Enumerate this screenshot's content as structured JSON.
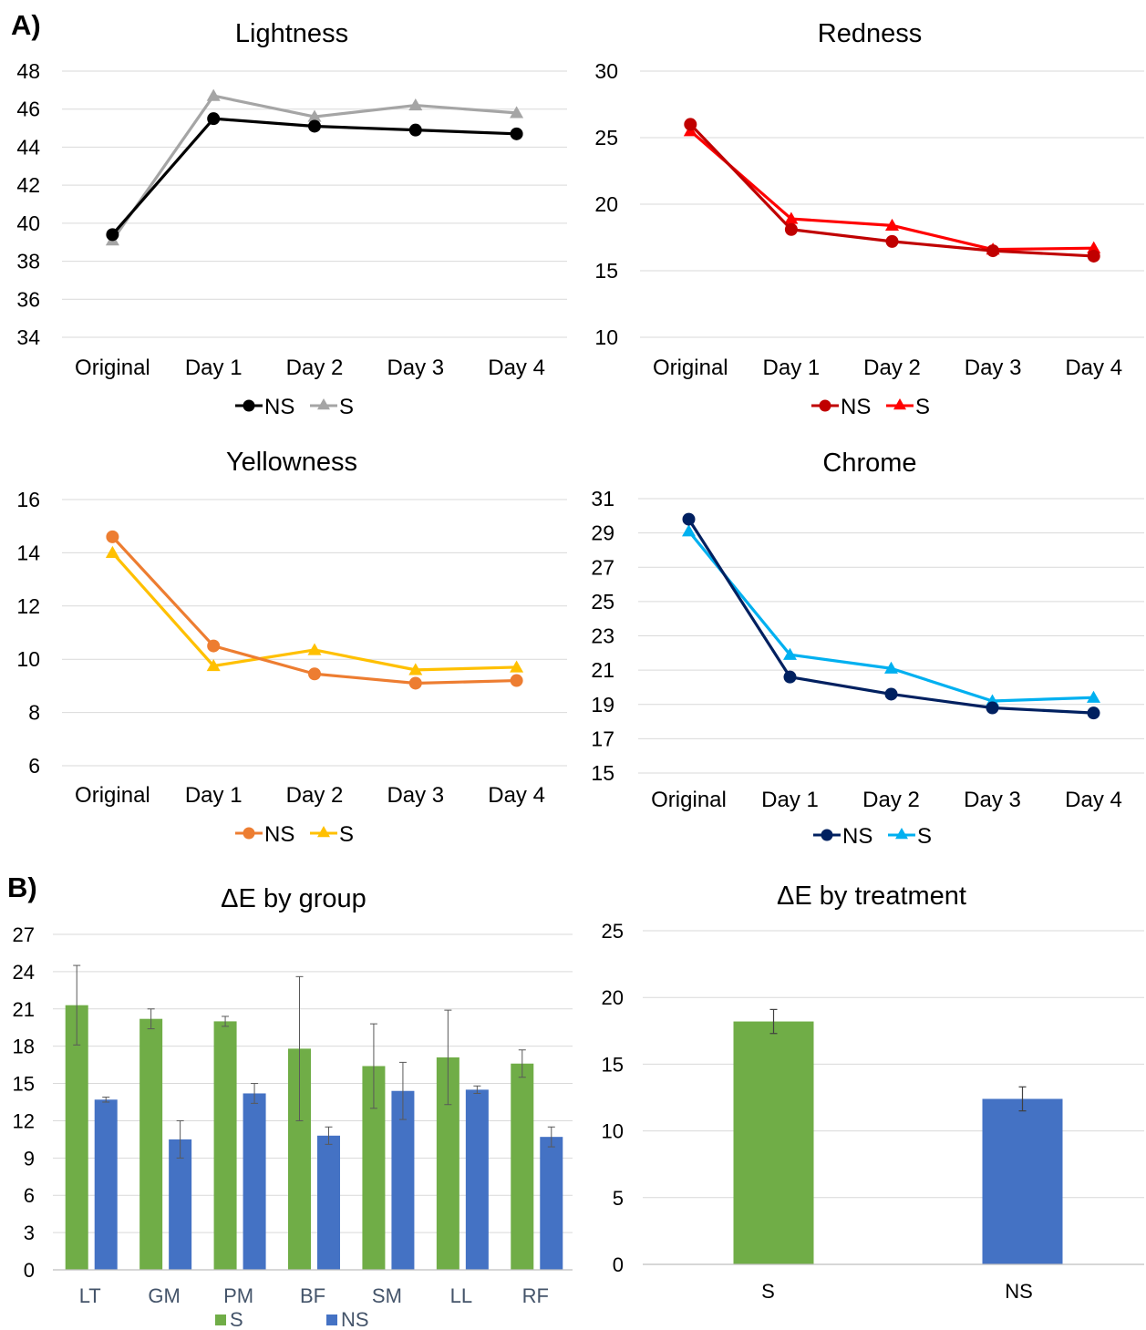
{
  "panel_labels": {
    "a": "A)",
    "b": "B)"
  },
  "chart_data": [
    {
      "id": "lightness",
      "type": "line",
      "title": "Lightness",
      "categories": [
        "Original",
        "Day 1",
        "Day 2",
        "Day 3",
        "Day 4"
      ],
      "ylim": [
        34,
        48
      ],
      "yticks": [
        "34",
        "36",
        "38",
        "40",
        "42",
        "44",
        "46",
        "48"
      ],
      "grid": true,
      "legend": "bottom",
      "series": [
        {
          "name": "NS",
          "marker": "circle",
          "color": "#000000",
          "values": [
            39.4,
            45.5,
            45.1,
            44.9,
            44.7
          ]
        },
        {
          "name": "S",
          "marker": "triangle",
          "color": "#a5a5a5",
          "values": [
            39.1,
            46.7,
            45.6,
            46.2,
            45.8
          ]
        }
      ]
    },
    {
      "id": "redness",
      "type": "line",
      "title": "Redness",
      "categories": [
        "Original",
        "Day 1",
        "Day 2",
        "Day 3",
        "Day 4"
      ],
      "ylim": [
        10,
        30
      ],
      "yticks": [
        "10",
        "15",
        "20",
        "25",
        "30"
      ],
      "grid": true,
      "legend": "bottom",
      "series": [
        {
          "name": "NS",
          "marker": "circle",
          "color": "#c00000",
          "values": [
            26.0,
            18.1,
            17.2,
            16.5,
            16.1
          ]
        },
        {
          "name": "S",
          "marker": "triangle",
          "color": "#ff0000",
          "values": [
            25.5,
            18.9,
            18.4,
            16.6,
            16.7
          ]
        }
      ]
    },
    {
      "id": "yellowness",
      "type": "line",
      "title": "Yellowness",
      "categories": [
        "Original",
        "Day 1",
        "Day 2",
        "Day 3",
        "Day 4"
      ],
      "ylim": [
        6,
        16
      ],
      "yticks": [
        "6",
        "8",
        "10",
        "12",
        "14",
        "16"
      ],
      "grid": true,
      "legend": "bottom",
      "series": [
        {
          "name": "NS",
          "marker": "circle",
          "color": "#ed7d31",
          "values": [
            14.6,
            10.5,
            9.45,
            9.1,
            9.2
          ]
        },
        {
          "name": "S",
          "marker": "triangle",
          "color": "#ffc000",
          "values": [
            14.0,
            9.75,
            10.35,
            9.6,
            9.7
          ]
        }
      ]
    },
    {
      "id": "chrome",
      "type": "line",
      "title": "Chrome",
      "categories": [
        "Original",
        "Day 1",
        "Day 2",
        "Day 3",
        "Day 4"
      ],
      "ylim": [
        15,
        31
      ],
      "yticks": [
        "15",
        "17",
        "19",
        "21",
        "23",
        "25",
        "27",
        "29",
        "31"
      ],
      "grid": true,
      "legend": "bottom",
      "series": [
        {
          "name": "NS",
          "marker": "circle",
          "color": "#002060",
          "values": [
            29.8,
            20.6,
            19.6,
            18.8,
            18.5
          ]
        },
        {
          "name": "S",
          "marker": "triangle",
          "color": "#00b0f0",
          "values": [
            29.1,
            21.9,
            21.1,
            19.2,
            19.4
          ]
        }
      ]
    },
    {
      "id": "de_group",
      "type": "bar",
      "title": "ΔE by group",
      "categories": [
        "LT",
        "GM",
        "PM",
        "BF",
        "SM",
        "LL",
        "RF"
      ],
      "ylim": [
        0,
        27
      ],
      "yticks": [
        "0",
        "3",
        "6",
        "9",
        "12",
        "15",
        "18",
        "21",
        "24",
        "27"
      ],
      "grid": true,
      "legend": "bottom",
      "series": [
        {
          "name": "S",
          "color": "#70ad47",
          "values": [
            21.3,
            20.2,
            20.0,
            17.8,
            16.4,
            17.1,
            16.6
          ],
          "errors": [
            3.2,
            0.8,
            0.4,
            5.8,
            3.4,
            3.8,
            1.1
          ]
        },
        {
          "name": "NS",
          "color": "#4472c4",
          "values": [
            13.7,
            10.5,
            14.2,
            10.8,
            14.4,
            14.5,
            10.7
          ],
          "errors": [
            0.2,
            1.5,
            0.8,
            0.7,
            2.3,
            0.3,
            0.8
          ]
        }
      ]
    },
    {
      "id": "de_treatment",
      "type": "bar",
      "title": "ΔE  by treatment",
      "categories": [
        "S",
        "NS"
      ],
      "ylim": [
        0,
        25
      ],
      "yticks": [
        "0",
        "5",
        "10",
        "15",
        "20",
        "25"
      ],
      "grid": true,
      "series": [
        {
          "name": "",
          "colors": [
            "#70ad47",
            "#4472c4"
          ],
          "values": [
            18.2,
            12.4
          ],
          "errors": [
            0.9,
            0.9
          ]
        }
      ]
    }
  ]
}
